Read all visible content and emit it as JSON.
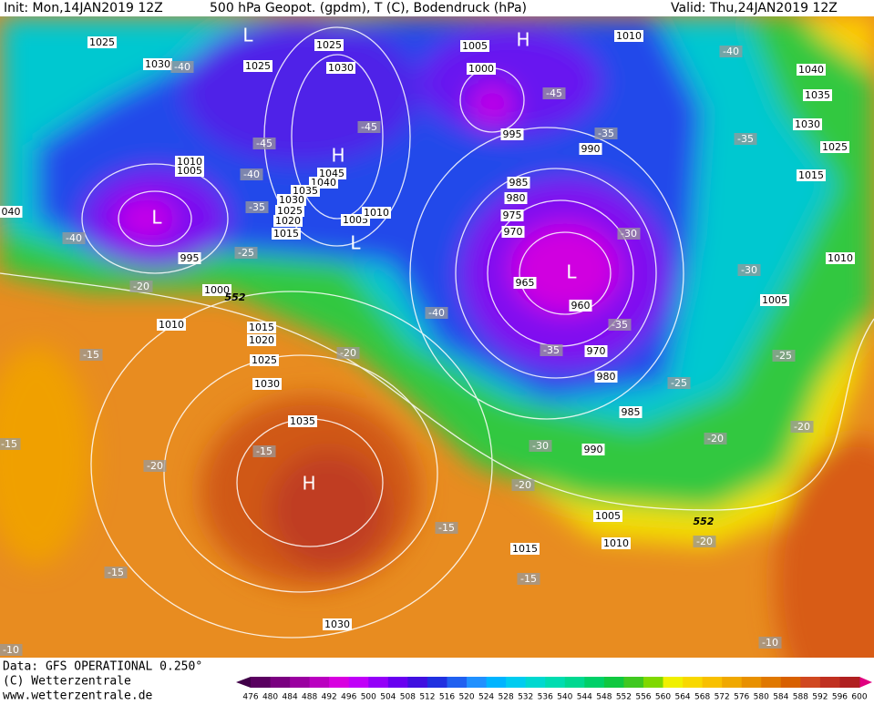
{
  "header": {
    "init": "Init: Mon,14JAN2019 12Z",
    "title": "500 hPa Geopot. (gpdm), T (C), Bodendruck (hPa)",
    "valid": "Valid: Thu,24JAN2019 12Z"
  },
  "map": {
    "pressure_labels": [
      "1025",
      "1030",
      "1025",
      "1025",
      "1030",
      "1005",
      "1000",
      "1010",
      "995",
      "990",
      "985",
      "980",
      "975",
      "970",
      "965",
      "960",
      "970",
      "980",
      "985",
      "990",
      "1010",
      "1005",
      "1045",
      "1040",
      "1035",
      "1030",
      "1025",
      "1020",
      "1015",
      "1005",
      "1010",
      "995",
      "1000",
      "1010",
      "1015",
      "1020",
      "1025",
      "1030",
      "1035",
      "1040",
      "1035",
      "1030",
      "1025",
      "1015",
      "1010",
      "1005",
      "1005",
      "1010",
      "1015",
      "1030",
      "040"
    ],
    "temperature_labels": [
      "-40",
      "-45",
      "-45",
      "-40",
      "-35",
      "-40",
      "-25",
      "-20",
      "-15",
      "-20",
      "-15",
      "-20",
      "-15",
      "-15",
      "-15",
      "-20",
      "-15",
      "-30",
      "-35",
      "-40",
      "-35",
      "-30",
      "-35",
      "-45",
      "-40",
      "-35",
      "-30",
      "-25",
      "-25",
      "-20",
      "-20",
      "-20",
      "-10",
      "-10"
    ],
    "centers": [
      "L",
      "H",
      "H",
      "L",
      "L",
      "L",
      "H"
    ],
    "contour_labels": [
      "552",
      "552"
    ]
  },
  "footer": {
    "data": "Data: GFS OPERATIONAL 0.250°",
    "copyright": "(C) Wetterzentrale",
    "url": "www.wetterzentrale.de"
  },
  "scale": {
    "values": [
      476,
      480,
      484,
      488,
      492,
      496,
      500,
      504,
      508,
      512,
      516,
      520,
      524,
      528,
      532,
      536,
      540,
      544,
      548,
      552,
      556,
      560,
      564,
      568,
      572,
      576,
      580,
      584,
      588,
      592,
      596,
      600
    ],
    "colors": [
      "#5a0060",
      "#7a0080",
      "#9a00a0",
      "#ba00c0",
      "#d800e0",
      "#c000f8",
      "#9400f8",
      "#6800f0",
      "#4010e0",
      "#2030e0",
      "#2060f0",
      "#2090ff",
      "#00b4ff",
      "#00ccf0",
      "#00d8d0",
      "#00dcb0",
      "#00d890",
      "#00d068",
      "#10c840",
      "#40c820",
      "#80d800",
      "#f0f000",
      "#f8d800",
      "#f8c000",
      "#f0a800",
      "#e89000",
      "#e07800",
      "#d86000",
      "#d04820",
      "#c03020",
      "#b02020"
    ],
    "below_color": "#400048",
    "above_color": "#e00080"
  }
}
